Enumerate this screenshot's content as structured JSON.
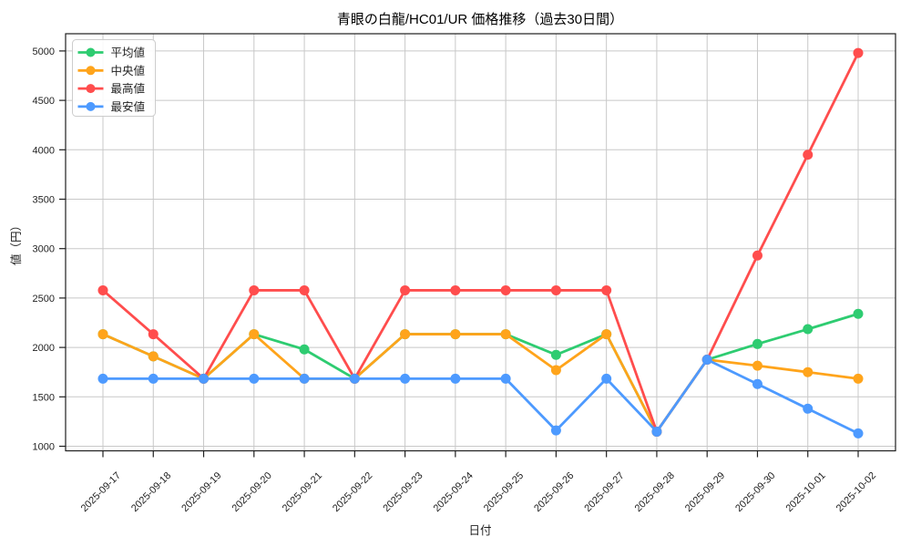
{
  "figure": {
    "title": "青眼の白龍/HC01/UR 価格推移（過去30日間）",
    "xlabel": "日付",
    "ylabel": "値（円）"
  },
  "chart_data": {
    "type": "line",
    "title": "青眼の白龍/HC01/UR 価格推移（過去30日間）",
    "xlabel": "日付",
    "ylabel": "値（円）",
    "grid": true,
    "legend_position": "upper left",
    "categories": [
      "2025-09-17",
      "2025-09-18",
      "2025-09-19",
      "2025-09-20",
      "2025-09-21",
      "2025-09-22",
      "2025-09-23",
      "2025-09-24",
      "2025-09-25",
      "2025-09-26",
      "2025-09-27",
      "2025-09-28",
      "2025-09-29",
      "2025-09-30",
      "2025-10-01",
      "2025-10-02"
    ],
    "yticks": [
      1000,
      1500,
      2000,
      2500,
      3000,
      3500,
      4000,
      4500,
      5000
    ],
    "ylim": [
      950,
      5175
    ],
    "series": [
      {
        "key": "average",
        "label": "平均値",
        "color": "#2ecc71",
        "values": [
          2134,
          1910,
          1684,
          2134,
          1980,
          1684,
          2134,
          2134,
          2134,
          1925,
          2134,
          1148,
          1876,
          2035,
          2185,
          2340
        ]
      },
      {
        "key": "median",
        "label": "中央値",
        "color": "#ffa41b",
        "values": [
          2134,
          1910,
          1684,
          2134,
          1684,
          1684,
          2134,
          2134,
          2134,
          1770,
          2134,
          1148,
          1876,
          1815,
          1750,
          1684
        ]
      },
      {
        "key": "max",
        "label": "最高値",
        "color": "#ff4d4d",
        "values": [
          2578,
          2134,
          1684,
          2578,
          2578,
          1684,
          2578,
          2578,
          2578,
          2578,
          2578,
          1148,
          1876,
          2930,
          3950,
          4980
        ]
      },
      {
        "key": "min",
        "label": "最安値",
        "color": "#4d9aff",
        "values": [
          1684,
          1684,
          1684,
          1684,
          1684,
          1684,
          1684,
          1684,
          1684,
          1160,
          1684,
          1148,
          1876,
          1630,
          1380,
          1130
        ]
      }
    ]
  },
  "colors": {
    "grid": "#c8c8c8",
    "spine": "#1f1f1f",
    "legend_border": "#cccccc",
    "background": "#ffffff"
  }
}
